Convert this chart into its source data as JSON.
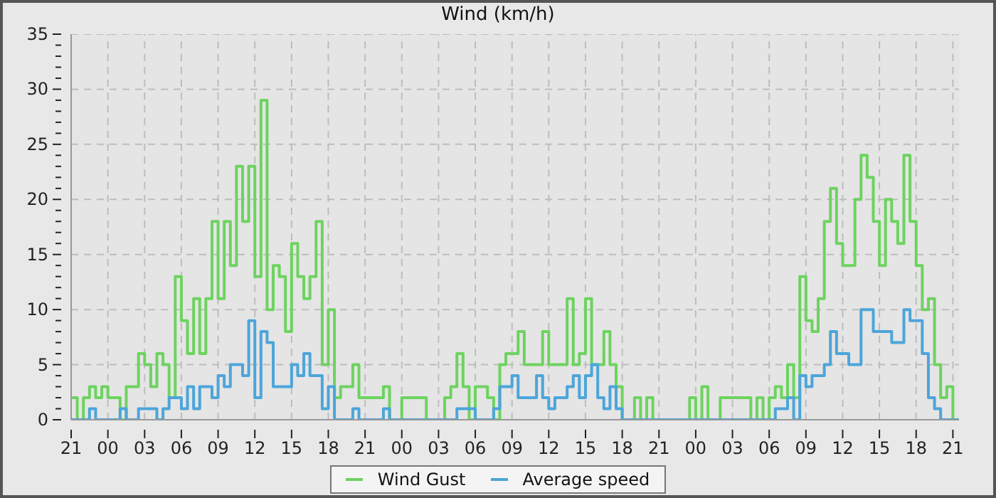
{
  "chart_data": {
    "type": "step",
    "title": "Wind (km/h)",
    "legend": "bottom",
    "grid": true,
    "marker": "none",
    "line_style": "solid",
    "categories": [
      "21",
      null,
      null,
      null,
      null,
      null,
      "00",
      null,
      null,
      null,
      null,
      null,
      "03",
      null,
      null,
      null,
      null,
      null,
      "06",
      null,
      null,
      null,
      null,
      null,
      "09",
      null,
      null,
      null,
      null,
      null,
      "12",
      null,
      null,
      null,
      null,
      null,
      "15",
      null,
      null,
      null,
      null,
      null,
      "18",
      null,
      null,
      null,
      null,
      null,
      "21",
      null,
      null,
      null,
      null,
      null,
      "00",
      null,
      null,
      null,
      null,
      null,
      "03",
      null,
      null,
      null,
      null,
      null,
      "06",
      null,
      null,
      null,
      null,
      null,
      "09",
      null,
      null,
      null,
      null,
      null,
      "12",
      null,
      null,
      null,
      null,
      null,
      "15",
      null,
      null,
      null,
      null,
      null,
      "18",
      null,
      null,
      null,
      null,
      null,
      "21",
      null,
      null,
      null,
      null,
      null,
      "00",
      null,
      null,
      null,
      null,
      null,
      "03",
      null,
      null,
      null,
      null,
      null,
      "06",
      null,
      null,
      null,
      null,
      null,
      "09",
      null,
      null,
      null,
      null,
      null,
      "12",
      null,
      null,
      null,
      null,
      null,
      "15",
      null,
      null,
      null,
      null,
      null,
      "18",
      null,
      null,
      null,
      null,
      null,
      "21",
      null
    ],
    "ylim": [
      0,
      35
    ],
    "yticks": [
      0,
      {
        "value": 1,
        "label": null
      },
      {
        "value": 2,
        "label": null
      },
      {
        "value": 3,
        "label": null
      },
      {
        "value": 4,
        "label": null
      },
      5,
      {
        "value": 6,
        "label": null
      },
      {
        "value": 7,
        "label": null
      },
      {
        "value": 8,
        "label": null
      },
      {
        "value": 9,
        "label": null
      },
      10,
      {
        "value": 11,
        "label": null
      },
      {
        "value": 12,
        "label": null
      },
      {
        "value": 13,
        "label": null
      },
      {
        "value": 14,
        "label": null
      },
      15,
      {
        "value": 16,
        "label": null
      },
      {
        "value": 17,
        "label": null
      },
      {
        "value": 18,
        "label": null
      },
      {
        "value": 19,
        "label": null
      },
      20,
      {
        "value": 21,
        "label": null
      },
      {
        "value": 22,
        "label": null
      },
      {
        "value": 23,
        "label": null
      },
      {
        "value": 24,
        "label": null
      },
      25,
      {
        "value": 26,
        "label": null
      },
      {
        "value": 27,
        "label": null
      },
      {
        "value": 28,
        "label": null
      },
      {
        "value": 29,
        "label": null
      },
      30,
      {
        "value": 31,
        "label": null
      },
      {
        "value": 32,
        "label": null
      },
      {
        "value": 33,
        "label": null
      },
      {
        "value": 34,
        "label": null
      },
      35
    ],
    "series": [
      {
        "name": "Wind Gust",
        "color": "#6dd35f",
        "values": [
          2,
          0,
          2,
          3,
          2,
          3,
          2,
          2,
          0,
          3,
          3,
          6,
          5,
          3,
          6,
          5,
          2,
          13,
          9,
          6,
          11,
          6,
          11,
          18,
          11,
          18,
          14,
          23,
          18,
          23,
          13,
          29,
          10,
          14,
          13,
          8,
          16,
          13,
          11,
          13,
          18,
          5,
          10,
          2,
          3,
          3,
          5,
          2,
          2,
          2,
          2,
          3,
          0,
          0,
          2,
          2,
          2,
          2,
          0,
          0,
          0,
          2,
          3,
          6,
          3,
          0,
          3,
          3,
          2,
          0,
          5,
          6,
          6,
          8,
          5,
          5,
          5,
          8,
          5,
          5,
          5,
          11,
          5,
          6,
          11,
          5,
          5,
          8,
          5,
          3,
          0,
          0,
          2,
          0,
          2,
          0,
          0,
          0,
          0,
          0,
          0,
          2,
          0,
          3,
          0,
          0,
          2,
          2,
          2,
          2,
          2,
          0,
          2,
          0,
          2,
          3,
          2,
          5,
          2,
          13,
          9,
          8,
          11,
          18,
          21,
          16,
          14,
          14,
          20,
          24,
          22,
          18,
          14,
          20,
          18,
          16,
          24,
          18,
          14,
          10,
          11,
          5,
          2,
          3,
          0,
          0
        ]
      },
      {
        "name": "Average speed",
        "color": "#4ca5da",
        "values": [
          0,
          0,
          0,
          1,
          0,
          0,
          0,
          0,
          1,
          0,
          0,
          1,
          1,
          1,
          0,
          1,
          2,
          2,
          1,
          3,
          1,
          3,
          3,
          2,
          4,
          3,
          5,
          5,
          4,
          9,
          2,
          8,
          7,
          3,
          3,
          3,
          5,
          4,
          6,
          4,
          4,
          1,
          3,
          0,
          0,
          0,
          1,
          0,
          0,
          0,
          0,
          1,
          0,
          0,
          0,
          0,
          0,
          0,
          0,
          0,
          0,
          0,
          0,
          1,
          1,
          1,
          0,
          0,
          0,
          1,
          3,
          3,
          4,
          2,
          2,
          2,
          4,
          2,
          1,
          2,
          2,
          3,
          4,
          2,
          4,
          5,
          2,
          1,
          3,
          1,
          0,
          0,
          0,
          0,
          0,
          0,
          0,
          0,
          0,
          0,
          0,
          0,
          0,
          0,
          0,
          0,
          0,
          0,
          0,
          0,
          0,
          0,
          0,
          0,
          0,
          1,
          1,
          2,
          0,
          4,
          3,
          4,
          4,
          5,
          8,
          6,
          6,
          5,
          5,
          10,
          10,
          8,
          8,
          8,
          7,
          7,
          10,
          9,
          9,
          6,
          2,
          1,
          0,
          0,
          0,
          0
        ]
      }
    ]
  }
}
